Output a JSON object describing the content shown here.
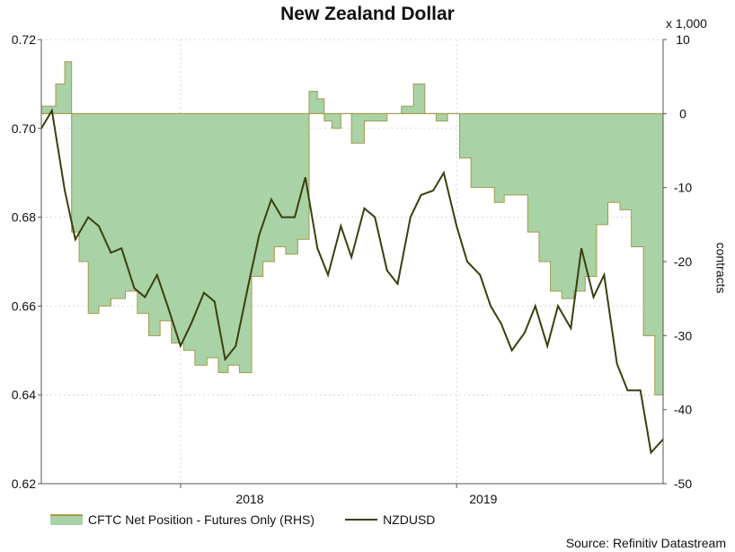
{
  "chart_data": {
    "type": "area",
    "title": "New Zealand Dollar",
    "source": "Source: Refinitiv Datastream",
    "right_axis_multiplier": "x 1,000",
    "right_axis_label": "contracts",
    "left_ylim": [
      0.62,
      0.72
    ],
    "left_ticks": [
      "0.72",
      "0.70",
      "0.68",
      "0.66",
      "0.64",
      "0.62"
    ],
    "right_ylim": [
      -50,
      10
    ],
    "right_ticks": [
      "10",
      "0",
      "-10",
      "-20",
      "-30",
      "-40",
      "-50"
    ],
    "x_tick_labels": [
      "2018",
      "2019"
    ],
    "x_range": [
      "2017-07",
      "2019-10"
    ],
    "series": [
      {
        "name": "CFTC Net Position - Futures Only (RHS)",
        "kind": "area",
        "axis": "right",
        "color": "#a9d2a6",
        "edge_color": "#a59a4a",
        "x": [
          "2017-07-01",
          "2017-07-20",
          "2017-08-01",
          "2017-08-10",
          "2017-08-20",
          "2017-09-01",
          "2017-09-15",
          "2017-10-01",
          "2017-10-20",
          "2017-11-05",
          "2017-11-20",
          "2017-12-05",
          "2017-12-20",
          "2018-01-05",
          "2018-01-20",
          "2018-02-05",
          "2018-02-20",
          "2018-03-05",
          "2018-03-20",
          "2018-04-05",
          "2018-04-20",
          "2018-05-05",
          "2018-05-20",
          "2018-06-05",
          "2018-06-20",
          "2018-07-01",
          "2018-07-10",
          "2018-07-20",
          "2018-08-01",
          "2018-08-15",
          "2018-09-01",
          "2018-09-15",
          "2018-10-01",
          "2018-10-20",
          "2018-11-05",
          "2018-11-20",
          "2018-12-05",
          "2018-12-20",
          "2019-01-05",
          "2019-01-20",
          "2019-02-05",
          "2019-02-20",
          "2019-03-05",
          "2019-03-20",
          "2019-04-05",
          "2019-04-20",
          "2019-05-05",
          "2019-05-20",
          "2019-06-05",
          "2019-06-20",
          "2019-07-05",
          "2019-07-20",
          "2019-08-05",
          "2019-08-20",
          "2019-09-05",
          "2019-09-20",
          "2019-10-01"
        ],
        "values": [
          1,
          4,
          7,
          -16,
          -20,
          -27,
          -26,
          -25,
          -24,
          -27,
          -30,
          -28,
          -31,
          -32,
          -34,
          -33,
          -35,
          -34,
          -35,
          -22,
          -20,
          -18,
          -19,
          -17,
          3,
          2,
          -1,
          -2,
          0,
          -4,
          -1,
          -1,
          0,
          1,
          4,
          0,
          -1,
          0,
          -6,
          -10,
          -10,
          -12,
          -11,
          -11,
          -16,
          -20,
          -24,
          -25,
          -24,
          -22,
          -15,
          -12,
          -13,
          -18,
          -30,
          -38,
          -42
        ]
      },
      {
        "name": "NZDUSD",
        "kind": "line",
        "axis": "left",
        "color": "#3a3f0e",
        "x": [
          "2017-07-01",
          "2017-07-15",
          "2017-08-01",
          "2017-08-15",
          "2017-09-01",
          "2017-09-15",
          "2017-10-01",
          "2017-10-15",
          "2017-11-01",
          "2017-11-15",
          "2017-12-01",
          "2017-12-15",
          "2018-01-01",
          "2018-01-15",
          "2018-02-01",
          "2018-02-15",
          "2018-03-01",
          "2018-03-15",
          "2018-04-01",
          "2018-04-15",
          "2018-05-01",
          "2018-05-15",
          "2018-06-01",
          "2018-06-15",
          "2018-07-01",
          "2018-07-15",
          "2018-08-01",
          "2018-08-15",
          "2018-09-01",
          "2018-09-15",
          "2018-10-01",
          "2018-10-15",
          "2018-11-01",
          "2018-11-15",
          "2018-12-01",
          "2018-12-15",
          "2019-01-01",
          "2019-01-15",
          "2019-02-01",
          "2019-02-15",
          "2019-03-01",
          "2019-03-15",
          "2019-04-01",
          "2019-04-15",
          "2019-05-01",
          "2019-05-15",
          "2019-06-01",
          "2019-06-15",
          "2019-07-01",
          "2019-07-15",
          "2019-08-01",
          "2019-08-15",
          "2019-09-01",
          "2019-09-15",
          "2019-10-01"
        ],
        "values": [
          0.7,
          0.704,
          0.686,
          0.675,
          0.68,
          0.678,
          0.672,
          0.673,
          0.664,
          0.662,
          0.667,
          0.66,
          0.651,
          0.656,
          0.663,
          0.661,
          0.648,
          0.651,
          0.665,
          0.676,
          0.684,
          0.68,
          0.68,
          0.689,
          0.673,
          0.667,
          0.678,
          0.671,
          0.682,
          0.68,
          0.668,
          0.665,
          0.68,
          0.685,
          0.686,
          0.69,
          0.678,
          0.67,
          0.667,
          0.66,
          0.656,
          0.65,
          0.654,
          0.66,
          0.651,
          0.66,
          0.655,
          0.673,
          0.662,
          0.667,
          0.647,
          0.641,
          0.641,
          0.627,
          0.63
        ]
      }
    ],
    "grid": true,
    "legend_position": "bottom-left"
  }
}
